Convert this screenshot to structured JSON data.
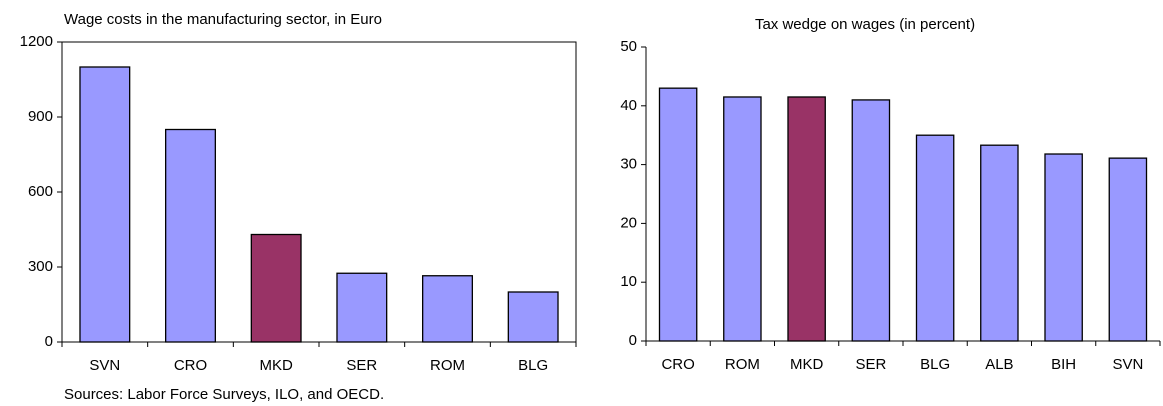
{
  "chart_data": [
    {
      "type": "bar",
      "title": "Wage costs in the manufacturing sector, in Euro",
      "categories": [
        "SVN",
        "CRO",
        "MKD",
        "SER",
        "ROM",
        "BLG"
      ],
      "values": [
        1100,
        850,
        430,
        275,
        265,
        200
      ],
      "colors": [
        "#9999ff",
        "#9999ff",
        "#993366",
        "#9999ff",
        "#9999ff",
        "#9999ff"
      ],
      "ylim": [
        0,
        1200
      ],
      "yticks": [
        0,
        300,
        600,
        900,
        1200
      ]
    },
    {
      "type": "bar",
      "title": "Tax wedge on wages (in percent)",
      "categories": [
        "CRO",
        "ROM",
        "MKD",
        "SER",
        "BLG",
        "ALB",
        "BIH",
        "SVN"
      ],
      "values": [
        43,
        41.5,
        41.5,
        41,
        35,
        33.3,
        31.8,
        31.1
      ],
      "colors": [
        "#9999ff",
        "#9999ff",
        "#993366",
        "#9999ff",
        "#9999ff",
        "#9999ff",
        "#9999ff",
        "#9999ff"
      ],
      "ylim": [
        0,
        50
      ],
      "yticks": [
        0,
        10,
        20,
        30,
        40,
        50
      ]
    }
  ],
  "source": "Sources: Labor Force Surveys, ILO, and OECD."
}
